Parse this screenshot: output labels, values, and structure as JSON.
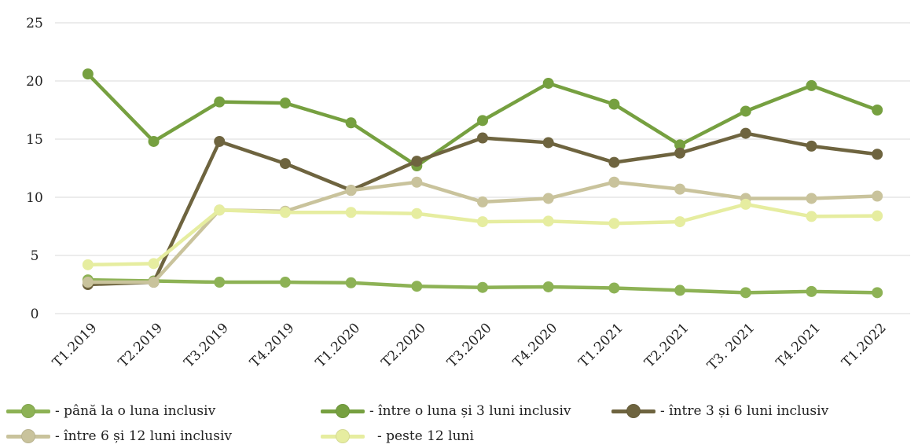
{
  "chart_data": {
    "type": "line",
    "categories": [
      "T1.2019",
      "T2.2019",
      "T3.2019",
      "T4.2019",
      "T1.2020",
      "T2.2020",
      "T3.2020",
      "T4.2020",
      "T1.2021",
      "T2.2021",
      "T3. 2021",
      "T4.2021",
      "T1.2022"
    ],
    "ylim": [
      0,
      25
    ],
    "yticks": [
      0,
      5,
      10,
      15,
      20,
      25
    ],
    "grid": true,
    "legend_position": "bottom",
    "series": [
      {
        "name": "- până la o luna inclusiv",
        "color": "#8db255",
        "values": [
          2.9,
          2.8,
          2.7,
          2.7,
          2.65,
          2.35,
          2.25,
          2.3,
          2.2,
          2.0,
          1.8,
          1.9,
          1.8
        ]
      },
      {
        "name": "- între o luna și 3 luni inclusiv",
        "color": "#76a040",
        "values": [
          20.6,
          14.8,
          18.2,
          18.1,
          16.4,
          12.7,
          16.6,
          19.8,
          18.0,
          14.5,
          17.4,
          19.6,
          17.5
        ]
      },
      {
        "name": "- între 3 și 6 luni inclusiv",
        "color": "#6e643f",
        "values": [
          2.5,
          2.7,
          14.8,
          12.9,
          10.6,
          13.1,
          15.1,
          14.7,
          13.0,
          13.8,
          15.5,
          14.4,
          13.7
        ]
      },
      {
        "name": "- între 6 și 12 luni inclusiv",
        "color": "#c9c39c",
        "values": [
          2.7,
          2.7,
          8.9,
          8.8,
          10.6,
          11.3,
          9.6,
          9.9,
          11.3,
          10.7,
          9.9,
          9.9,
          10.1
        ]
      },
      {
        "name": "- peste 12 luni",
        "color": "#e6eda0",
        "values": [
          4.2,
          4.3,
          8.9,
          8.7,
          8.7,
          8.6,
          7.9,
          7.95,
          7.75,
          7.9,
          9.4,
          8.35,
          8.4
        ]
      }
    ]
  }
}
